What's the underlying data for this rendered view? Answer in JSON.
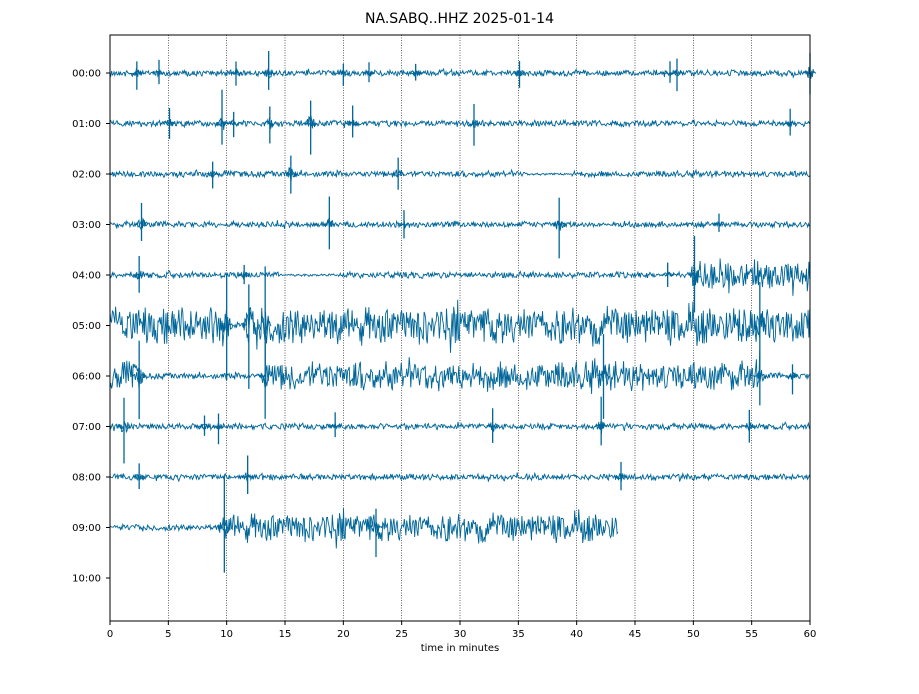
{
  "chart_data": {
    "type": "line",
    "title": "NA.SABQ..HHZ 2025-01-14",
    "xlabel": "time in minutes",
    "ylabel": "",
    "xlim": [
      0,
      60
    ],
    "x_ticks": [
      "0",
      "5",
      "10",
      "15",
      "20",
      "25",
      "30",
      "35",
      "40",
      "45",
      "50",
      "55",
      "60"
    ],
    "grid": "vertical dotted lines every 5 minutes",
    "line_color": "#006699",
    "series": [
      {
        "label": "00:00",
        "x_end": 60,
        "segments": [
          [
            0,
            60,
            "low"
          ]
        ],
        "spikes": [
          [
            2.3,
            0.5
          ],
          [
            4.2,
            0.4
          ],
          [
            10.8,
            0.4
          ],
          [
            13.6,
            0.6
          ],
          [
            20,
            0.4
          ],
          [
            22.2,
            0.3
          ],
          [
            26.2,
            0.3
          ],
          [
            35.1,
            0.5
          ],
          [
            48,
            0.4
          ],
          [
            48.6,
            0.5
          ],
          [
            60,
            0.7
          ]
        ]
      },
      {
        "label": "01:00",
        "x_end": 60,
        "segments": [
          [
            0,
            60,
            "low"
          ]
        ],
        "spikes": [
          [
            5.1,
            0.5
          ],
          [
            9.6,
            0.9
          ],
          [
            10.6,
            0.5
          ],
          [
            13.7,
            0.6
          ],
          [
            17.2,
            0.9
          ],
          [
            20.8,
            0.6
          ],
          [
            31.2,
            0.7
          ],
          [
            58.3,
            0.4
          ]
        ]
      },
      {
        "label": "02:00",
        "x_end": 60,
        "segments": [
          [
            0,
            35.6,
            "low"
          ],
          [
            35.6,
            39.6,
            "quiet"
          ],
          [
            39.6,
            60,
            "low"
          ]
        ],
        "spikes": [
          [
            8.8,
            0.4
          ],
          [
            15.5,
            0.8
          ],
          [
            24.7,
            0.6
          ]
        ]
      },
      {
        "label": "03:00",
        "x_end": 60,
        "segments": [
          [
            0,
            9.5,
            "low"
          ],
          [
            9.5,
            10.1,
            "quiet"
          ],
          [
            10.1,
            42,
            "low"
          ],
          [
            42,
            43,
            "quiet"
          ],
          [
            43,
            60,
            "low"
          ]
        ],
        "spikes": [
          [
            2.7,
            0.7
          ],
          [
            18.8,
            0.8
          ],
          [
            25.2,
            0.4
          ],
          [
            38.5,
            1.0
          ],
          [
            52.2,
            0.3
          ]
        ]
      },
      {
        "label": "04:00",
        "x_end": 60,
        "segments": [
          [
            0,
            14.5,
            "low"
          ],
          [
            14.5,
            19.6,
            "quiet"
          ],
          [
            19.6,
            46.8,
            "low"
          ],
          [
            46.8,
            48.3,
            "quiet"
          ],
          [
            48.3,
            50.1,
            "low"
          ],
          [
            50.1,
            60,
            "high"
          ]
        ],
        "spikes": [
          [
            2.5,
            0.6
          ],
          [
            11.5,
            0.4
          ],
          [
            47.8,
            0.4
          ],
          [
            50.1,
            1.5
          ]
        ]
      },
      {
        "label": "05:00",
        "x_end": 60,
        "segments": [
          [
            0,
            10.1,
            "veryhigh"
          ],
          [
            10.1,
            11.7,
            "low"
          ],
          [
            11.7,
            60,
            "veryhigh"
          ]
        ],
        "spikes": [
          [
            10,
            1.6
          ],
          [
            11.9,
            1.8
          ],
          [
            13.3,
            1.6
          ],
          [
            55.7,
            1.6
          ]
        ]
      },
      {
        "label": "06:00",
        "x_end": 60,
        "segments": [
          [
            0,
            2.6,
            "high"
          ],
          [
            2.6,
            13.3,
            "low"
          ],
          [
            13.3,
            55.7,
            "high"
          ],
          [
            55.7,
            60,
            "low"
          ]
        ],
        "spikes": [
          [
            2.5,
            1.2
          ],
          [
            13.3,
            1.4
          ],
          [
            42.3,
            1.2
          ],
          [
            55.7,
            1.0
          ],
          [
            58.5,
            0.5
          ]
        ]
      },
      {
        "label": "07:00",
        "x_end": 60,
        "segments": [
          [
            0,
            60,
            "low"
          ]
        ],
        "spikes": [
          [
            1.2,
            1.0
          ],
          [
            8.1,
            0.4
          ],
          [
            9.3,
            0.5
          ],
          [
            19.3,
            0.4
          ],
          [
            32.8,
            0.6
          ],
          [
            42.1,
            0.8
          ],
          [
            54.8,
            0.5
          ]
        ]
      },
      {
        "label": "08:00",
        "x_end": 60,
        "segments": [
          [
            0,
            60,
            "low"
          ]
        ],
        "spikes": [
          [
            2.5,
            0.4
          ],
          [
            11.8,
            0.6
          ],
          [
            43.8,
            0.5
          ]
        ]
      },
      {
        "label": "09:00",
        "x_end": 43.6,
        "segments": [
          [
            0,
            9.8,
            "low"
          ],
          [
            9.8,
            43.6,
            "high"
          ]
        ],
        "spikes": [
          [
            9.8,
            1.7
          ],
          [
            22.8,
            0.8
          ]
        ]
      },
      {
        "label": "10:00",
        "x_end": 0,
        "segments": [],
        "spikes": []
      }
    ]
  }
}
